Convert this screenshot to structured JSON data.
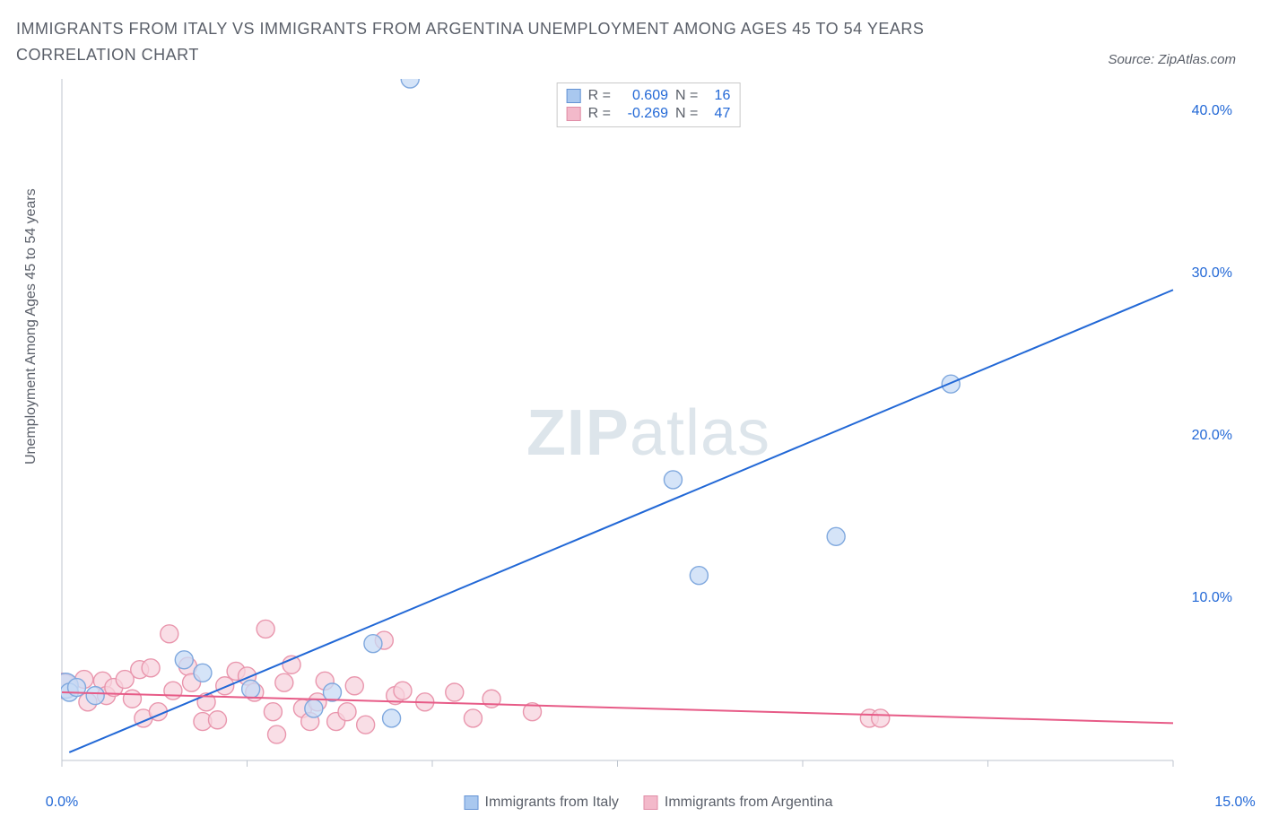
{
  "title": "IMMIGRANTS FROM ITALY VS IMMIGRANTS FROM ARGENTINA UNEMPLOYMENT AMONG AGES 45 TO 54 YEARS CORRELATION CHART",
  "source_text": "Source: ZipAtlas.com",
  "ylabel": "Unemployment Among Ages 45 to 54 years",
  "watermark_bold": "ZIP",
  "watermark_light": "atlas",
  "chart": {
    "type": "scatter",
    "background_color": "#ffffff",
    "axis_color": "#bfc6cf",
    "tick_color": "#bfc6cf",
    "xlim": [
      0,
      15
    ],
    "ylim": [
      0,
      42
    ],
    "x_ticks_major": [
      0,
      2.5,
      5.0,
      7.5,
      10.0,
      12.5,
      15.0
    ],
    "x_tick_labels": {
      "0": "0.0%",
      "15": "15.0%"
    },
    "y_ticks": [
      10.0,
      20.0,
      30.0,
      40.0
    ],
    "y_tick_labels": {
      "10": "10.0%",
      "20": "20.0%",
      "30": "30.0%",
      "40": "40.0%"
    },
    "series": [
      {
        "name": "Immigrants from Italy",
        "marker_fill": "#c7dbf5",
        "marker_stroke": "#7fa8de",
        "line_color": "#2268d6",
        "line_width": 2,
        "swatch_fill": "#a9c8ef",
        "swatch_border": "#6493d4",
        "R": "0.609",
        "N": "16",
        "marker_r": 10,
        "trend": {
          "x1": 0.1,
          "y1": 0.5,
          "x2": 15.0,
          "y2": 29.0
        },
        "points": [
          {
            "x": 0.05,
            "y": 4.6,
            "r": 14
          },
          {
            "x": 0.1,
            "y": 4.2
          },
          {
            "x": 0.2,
            "y": 4.5
          },
          {
            "x": 0.45,
            "y": 4.0
          },
          {
            "x": 1.65,
            "y": 6.2
          },
          {
            "x": 1.9,
            "y": 5.4
          },
          {
            "x": 2.55,
            "y": 4.4
          },
          {
            "x": 3.4,
            "y": 3.2
          },
          {
            "x": 3.65,
            "y": 4.2
          },
          {
            "x": 4.2,
            "y": 7.2
          },
          {
            "x": 4.45,
            "y": 2.6
          },
          {
            "x": 4.7,
            "y": 42.0
          },
          {
            "x": 8.25,
            "y": 17.3
          },
          {
            "x": 8.6,
            "y": 11.4
          },
          {
            "x": 10.45,
            "y": 13.8
          },
          {
            "x": 12.0,
            "y": 23.2
          }
        ]
      },
      {
        "name": "Immigrants from Argentina",
        "marker_fill": "#f7d3dd",
        "marker_stroke": "#e996ad",
        "line_color": "#e75b87",
        "line_width": 2,
        "swatch_fill": "#f3b9ca",
        "swatch_border": "#e08ca6",
        "R": "-0.269",
        "N": "47",
        "marker_r": 10,
        "trend": {
          "x1": 0.0,
          "y1": 4.2,
          "x2": 15.0,
          "y2": 2.3
        },
        "points": [
          {
            "x": 0.0,
            "y": 4.6,
            "r": 14
          },
          {
            "x": 0.05,
            "y": 4.6,
            "r": 13
          },
          {
            "x": 0.3,
            "y": 5.0
          },
          {
            "x": 0.35,
            "y": 3.6
          },
          {
            "x": 0.55,
            "y": 4.9
          },
          {
            "x": 0.6,
            "y": 4.0
          },
          {
            "x": 0.7,
            "y": 4.5
          },
          {
            "x": 0.85,
            "y": 5.0
          },
          {
            "x": 0.95,
            "y": 3.8
          },
          {
            "x": 1.05,
            "y": 5.6
          },
          {
            "x": 1.1,
            "y": 2.6
          },
          {
            "x": 1.2,
            "y": 5.7
          },
          {
            "x": 1.3,
            "y": 3.0
          },
          {
            "x": 1.45,
            "y": 7.8
          },
          {
            "x": 1.5,
            "y": 4.3
          },
          {
            "x": 1.7,
            "y": 5.8
          },
          {
            "x": 1.75,
            "y": 4.8
          },
          {
            "x": 1.9,
            "y": 2.4
          },
          {
            "x": 1.95,
            "y": 3.6
          },
          {
            "x": 2.1,
            "y": 2.5
          },
          {
            "x": 2.2,
            "y": 4.6
          },
          {
            "x": 2.35,
            "y": 5.5
          },
          {
            "x": 2.5,
            "y": 5.2
          },
          {
            "x": 2.6,
            "y": 4.2
          },
          {
            "x": 2.75,
            "y": 8.1
          },
          {
            "x": 2.85,
            "y": 3.0
          },
          {
            "x": 2.9,
            "y": 1.6
          },
          {
            "x": 3.0,
            "y": 4.8
          },
          {
            "x": 3.1,
            "y": 5.9
          },
          {
            "x": 3.25,
            "y": 3.2
          },
          {
            "x": 3.35,
            "y": 2.4
          },
          {
            "x": 3.45,
            "y": 3.6
          },
          {
            "x": 3.55,
            "y": 4.9
          },
          {
            "x": 3.7,
            "y": 2.4
          },
          {
            "x": 3.85,
            "y": 3.0
          },
          {
            "x": 3.95,
            "y": 4.6
          },
          {
            "x": 4.1,
            "y": 2.2
          },
          {
            "x": 4.35,
            "y": 7.4
          },
          {
            "x": 4.5,
            "y": 4.0
          },
          {
            "x": 4.6,
            "y": 4.3
          },
          {
            "x": 4.9,
            "y": 3.6
          },
          {
            "x": 5.3,
            "y": 4.2
          },
          {
            "x": 5.55,
            "y": 2.6
          },
          {
            "x": 5.8,
            "y": 3.8
          },
          {
            "x": 6.35,
            "y": 3.0
          },
          {
            "x": 10.9,
            "y": 2.6
          },
          {
            "x": 11.05,
            "y": 2.6
          }
        ]
      }
    ],
    "legend_labels": {
      "R": "R =",
      "N": "N ="
    }
  }
}
